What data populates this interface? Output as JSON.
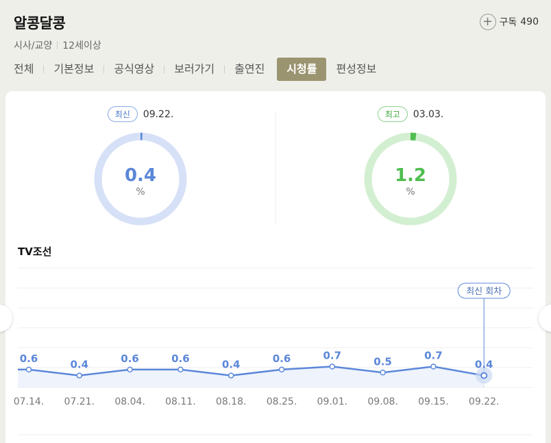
{
  "program": {
    "title": "알콩달콩",
    "genre": "시사/교양",
    "rating": "12세이상",
    "subscribe_label": "구독",
    "subscribe_count": "490"
  },
  "tabs": [
    {
      "label": "전체",
      "active": false
    },
    {
      "label": "기본정보",
      "active": false
    },
    {
      "label": "공식영상",
      "active": false
    },
    {
      "label": "보러가기",
      "active": false
    },
    {
      "label": "출연진",
      "active": false
    },
    {
      "label": "시청률",
      "active": true
    },
    {
      "label": "편성정보",
      "active": false
    }
  ],
  "gauges": {
    "latest": {
      "badge": "최신",
      "date": "09.22.",
      "value": "0.4",
      "unit": "%",
      "color": "#5b87d9",
      "track": "#d6e1f7",
      "fraction": 0.0067
    },
    "highest": {
      "badge": "최고",
      "date": "03.03.",
      "value": "1.2",
      "unit": "%",
      "color": "#4fbe4f",
      "track": "#d3efd1",
      "fraction": 0.02
    }
  },
  "channel": "TV조선",
  "chart_data": {
    "type": "area",
    "categories": [
      "07.14.",
      "07.21.",
      "08.04.",
      "08.11.",
      "08.18.",
      "08.25.",
      "09.01.",
      "09.08.",
      "09.15.",
      "09.22."
    ],
    "series": [
      {
        "values": [
          0.6,
          0.4,
          0.6,
          0.6,
          0.4,
          0.6,
          0.7,
          0.5,
          0.7,
          0.4
        ]
      }
    ],
    "value_labels": [
      "0.6",
      "0.4",
      "0.6",
      "0.6",
      "0.4",
      "0.6",
      "0.7",
      "0.5",
      "0.7",
      "0.4"
    ],
    "ylim": [
      0,
      4
    ],
    "grid": true,
    "highlight_label": "최신 회차",
    "highlight_index": 9,
    "line_color": "#5b87d9",
    "fill_color": "#eef3fc"
  }
}
